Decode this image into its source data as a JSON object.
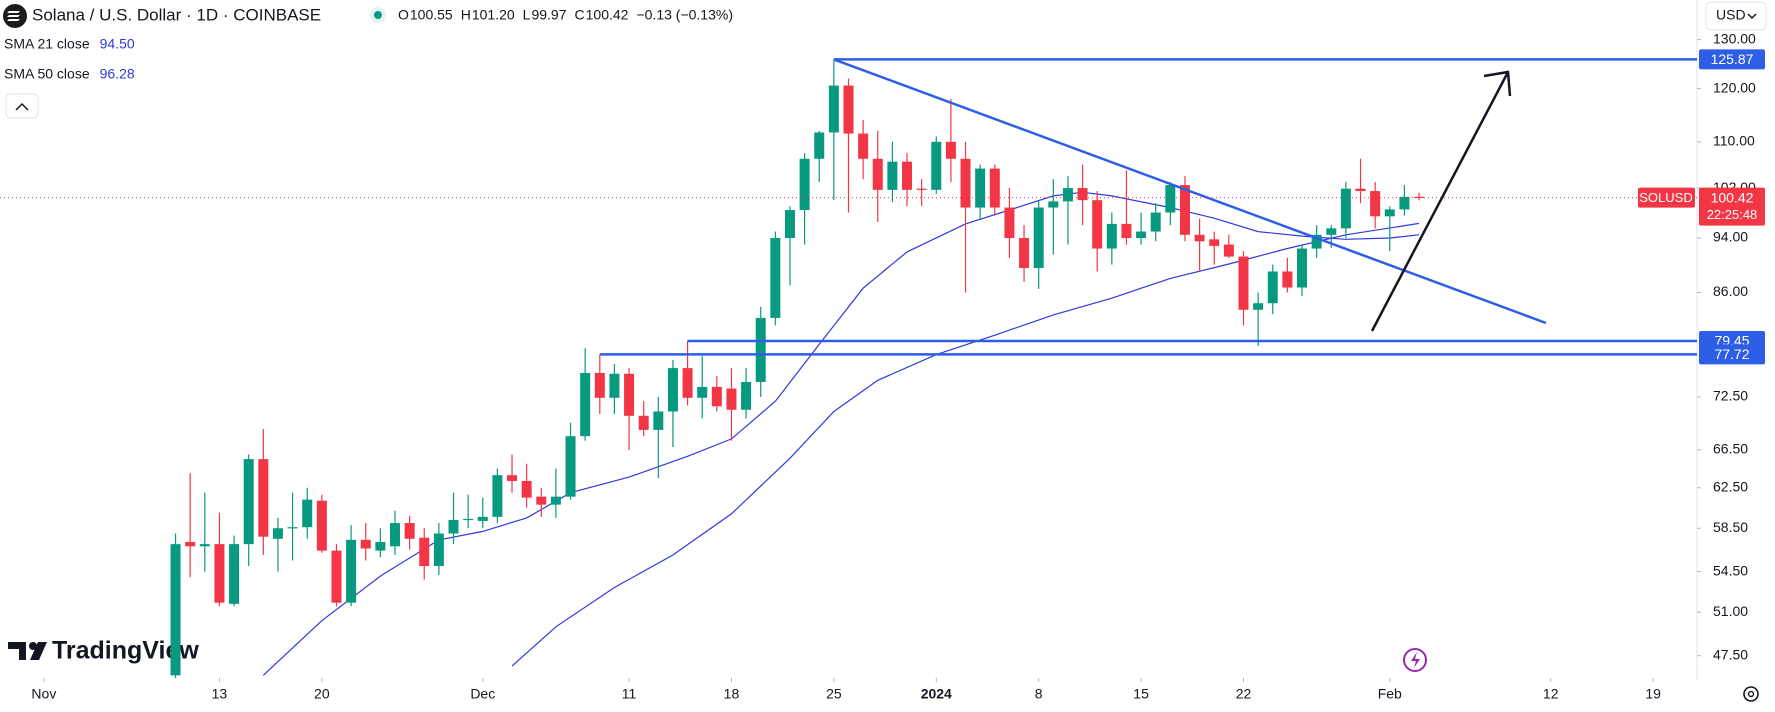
{
  "chart_data": {
    "type": "candlestick",
    "title": "Solana / U.S. Dollar · 1D · COINBASE",
    "ohlc_header": [
      {
        "key": "O",
        "value": "100.55"
      },
      {
        "key": "H",
        "value": "101.20"
      },
      {
        "key": "L",
        "value": "99.97"
      },
      {
        "key": "C",
        "value": "100.42"
      }
    ],
    "change": "−0.13 (−0.13%)",
    "currency": "USD",
    "brand": "TradingView",
    "symbol": "SOLUSD",
    "last_price": 100.42,
    "countdown": "22:25:48",
    "up_color": "#089981",
    "down_color": "#f23645",
    "log_scale": true,
    "ylim": [
      45.8,
      138.7
    ],
    "yticks": [
      {
        "value": 130,
        "label": "130.00"
      },
      {
        "value": 120,
        "label": "120.00"
      },
      {
        "value": 110,
        "label": "110.00"
      },
      {
        "value": 102,
        "label": "102.00"
      },
      {
        "value": 94,
        "label": "94.00"
      },
      {
        "value": 86,
        "label": "86.00"
      },
      {
        "value": 72.5,
        "label": "72.50"
      },
      {
        "value": 66.5,
        "label": "66.50"
      },
      {
        "value": 62.5,
        "label": "62.50"
      },
      {
        "value": 58.5,
        "label": "58.50"
      },
      {
        "value": 54.5,
        "label": "54.50"
      },
      {
        "value": 51,
        "label": "51.00"
      },
      {
        "value": 47.5,
        "label": "47.50"
      }
    ],
    "xlim": [
      "2023-10-29",
      "2024-02-22"
    ],
    "xticks": [
      {
        "value": "2023-11-01",
        "label": "Nov"
      },
      {
        "value": "2023-11-13",
        "label": "13"
      },
      {
        "value": "2023-11-20",
        "label": "20"
      },
      {
        "value": "2023-12-01",
        "label": "Dec"
      },
      {
        "value": "2023-12-11",
        "label": "11"
      },
      {
        "value": "2023-12-18",
        "label": "18"
      },
      {
        "value": "2023-12-25",
        "label": "25"
      },
      {
        "value": "2024-01-01",
        "label": "2024"
      },
      {
        "value": "2024-01-08",
        "label": "8"
      },
      {
        "value": "2024-01-15",
        "label": "15"
      },
      {
        "value": "2024-01-22",
        "label": "22"
      },
      {
        "value": "2024-02-01",
        "label": "Feb"
      },
      {
        "value": "2024-02-12",
        "label": "12"
      },
      {
        "value": "2024-02-19",
        "label": "19"
      }
    ],
    "x": [
      "2023-11-10",
      "2023-11-11",
      "2023-11-12",
      "2023-11-13",
      "2023-11-14",
      "2023-11-15",
      "2023-11-16",
      "2023-11-17",
      "2023-11-18",
      "2023-11-19",
      "2023-11-20",
      "2023-11-21",
      "2023-11-22",
      "2023-11-23",
      "2023-11-24",
      "2023-11-25",
      "2023-11-26",
      "2023-11-27",
      "2023-11-28",
      "2023-11-29",
      "2023-11-30",
      "2023-12-01",
      "2023-12-02",
      "2023-12-03",
      "2023-12-04",
      "2023-12-05",
      "2023-12-06",
      "2023-12-07",
      "2023-12-08",
      "2023-12-09",
      "2023-12-10",
      "2023-12-11",
      "2023-12-12",
      "2023-12-13",
      "2023-12-14",
      "2023-12-15",
      "2023-12-16",
      "2023-12-17",
      "2023-12-18",
      "2023-12-19",
      "2023-12-20",
      "2023-12-21",
      "2023-12-22",
      "2023-12-23",
      "2023-12-24",
      "2023-12-25",
      "2023-12-26",
      "2023-12-27",
      "2023-12-28",
      "2023-12-29",
      "2023-12-30",
      "2023-12-31",
      "2024-01-01",
      "2024-01-02",
      "2024-01-03",
      "2024-01-04",
      "2024-01-05",
      "2024-01-06",
      "2024-01-07",
      "2024-01-08",
      "2024-01-09",
      "2024-01-10",
      "2024-01-11",
      "2024-01-12",
      "2024-01-13",
      "2024-01-14",
      "2024-01-15",
      "2024-01-16",
      "2024-01-17",
      "2024-01-18",
      "2024-01-19",
      "2024-01-20",
      "2024-01-21",
      "2024-01-22",
      "2024-01-23",
      "2024-01-24",
      "2024-01-25",
      "2024-01-26",
      "2024-01-27",
      "2024-01-28",
      "2024-01-29",
      "2024-01-30",
      "2024-01-31",
      "2024-02-01",
      "2024-02-02",
      "2024-02-03"
    ],
    "open": [
      46,
      57.2,
      56.8,
      57,
      51.7,
      57,
      65.5,
      57.5,
      58.5,
      58.6,
      61.2,
      56.4,
      51.8,
      57.4,
      56.4,
      56.8,
      59,
      57.6,
      55,
      58,
      59.3,
      59.2,
      59.6,
      63.8,
      63.2,
      61.6,
      60.8,
      61.6,
      68,
      75.4,
      72.4,
      75.3,
      70.3,
      68.7,
      70.8,
      76,
      72.4,
      73.7,
      73.5,
      71,
      74.3,
      82.5,
      94,
      98.4,
      107,
      111.7,
      120.6,
      111.5,
      107,
      101.7,
      106.5,
      101.9,
      101.7,
      110,
      107,
      98.8,
      105.3,
      98.8,
      94,
      89.5,
      98.8,
      99.8,
      102,
      100,
      92.4,
      96.2,
      94,
      95,
      98,
      102.5,
      94.5,
      93.8,
      93,
      91.2,
      83.6,
      84.5,
      89,
      86.7,
      92.4,
      94.5,
      95.5,
      101.9,
      101.5,
      97.4,
      98.5,
      100.55
    ],
    "high": [
      58,
      64,
      62,
      60,
      57.8,
      66,
      68.8,
      59.5,
      62,
      62.5,
      61.8,
      57,
      58.8,
      59,
      58.5,
      60.2,
      59.7,
      58.5,
      59,
      62,
      61.8,
      61.5,
      64.5,
      66,
      65,
      62.5,
      64.5,
      69.5,
      78.5,
      77.72,
      76.5,
      76,
      72,
      72.5,
      77,
      79.45,
      77.5,
      75,
      76,
      76,
      84,
      95,
      99,
      108,
      112,
      125.87,
      122,
      114,
      112,
      110,
      108,
      103.5,
      111,
      118,
      110,
      106,
      106,
      102,
      96,
      100,
      103.5,
      104,
      106,
      101.5,
      98,
      105,
      98,
      99.5,
      103,
      104,
      97,
      95,
      94.5,
      92,
      86,
      90,
      91,
      93,
      96,
      96,
      103,
      107,
      103,
      99,
      102.5,
      101.2
    ],
    "low": [
      45,
      54,
      54.5,
      51.5,
      51.5,
      55,
      56,
      54.5,
      55.5,
      57.5,
      56.2,
      51.5,
      51.5,
      55.5,
      55.8,
      56,
      56.5,
      53.8,
      54.2,
      57,
      58.5,
      58.5,
      59,
      62,
      60.5,
      59.6,
      59.5,
      61.3,
      67.5,
      70.5,
      70.5,
      66.5,
      68,
      63.5,
      66.8,
      71.5,
      70,
      70.8,
      67.5,
      70,
      72.5,
      81.5,
      87,
      93,
      103,
      100,
      98,
      103.5,
      96.5,
      99.7,
      99,
      99,
      101,
      103,
      86,
      97,
      97.5,
      91,
      87.5,
      86.5,
      91.5,
      93,
      96,
      89,
      90,
      93,
      93,
      93.5,
      96,
      93.5,
      89,
      90,
      91,
      81.5,
      78.8,
      83,
      86,
      85.5,
      91,
      92.5,
      94,
      99.5,
      95.5,
      92,
      97.5,
      99.97
    ],
    "close": [
      57,
      56.8,
      57,
      51.8,
      57,
      65.5,
      57.7,
      58.5,
      58.6,
      61.3,
      56.4,
      51.8,
      57.4,
      56.6,
      57.2,
      59,
      57.5,
      55,
      58,
      59.3,
      59.4,
      59.6,
      63.8,
      63.2,
      61.5,
      60.8,
      61.6,
      68,
      75.4,
      72.4,
      75.3,
      70.3,
      68.7,
      70.8,
      76,
      72.4,
      73.7,
      71.4,
      71,
      74.3,
      82.5,
      94,
      98.4,
      107,
      111.7,
      120.6,
      111.5,
      107,
      101.7,
      106.5,
      101.7,
      101.7,
      110,
      107,
      98.8,
      105.3,
      98.8,
      94,
      89.5,
      98.8,
      99.8,
      102,
      100,
      92.4,
      96.2,
      94,
      95,
      98,
      102.5,
      94.5,
      93.5,
      92.8,
      91.2,
      83.6,
      84.5,
      89,
      86.7,
      92.4,
      94.5,
      95.5,
      101.9,
      101.5,
      97.4,
      98.5,
      100.55,
      100.42
    ],
    "series": [
      {
        "name": "SMA 21 close",
        "last_label": "94.50",
        "color": "#2e3bdb",
        "x": [
          "2023-11-16",
          "2023-11-20",
          "2023-11-24",
          "2023-11-28",
          "2023-12-01",
          "2023-12-04",
          "2023-12-07",
          "2023-12-11",
          "2023-12-15",
          "2023-12-18",
          "2023-12-21",
          "2023-12-24",
          "2023-12-27",
          "2023-12-30",
          "2024-01-03",
          "2024-01-06",
          "2024-01-09",
          "2024-01-11",
          "2024-01-13",
          "2024-01-17",
          "2024-01-20",
          "2024-01-23",
          "2024-01-26",
          "2024-01-29",
          "2024-02-01",
          "2024-02-03"
        ],
        "values": [
          46,
          50.3,
          54.1,
          57.4,
          58.2,
          59.5,
          62,
          63.6,
          65.8,
          67.7,
          72,
          79,
          86.6,
          91.9,
          96.2,
          98.4,
          100.7,
          101.3,
          100.7,
          98.8,
          97.1,
          95,
          94.3,
          93.8,
          94,
          94.5
        ]
      },
      {
        "name": "SMA 50 close",
        "last_label": "96.28",
        "color": "#2e3bdb",
        "x": [
          "2023-12-03",
          "2023-12-06",
          "2023-12-10",
          "2023-12-14",
          "2023-12-18",
          "2023-12-22",
          "2023-12-25",
          "2023-12-28",
          "2024-01-01",
          "2024-01-05",
          "2024-01-09",
          "2024-01-13",
          "2024-01-17",
          "2024-01-21",
          "2024-01-25",
          "2024-01-29",
          "2024-02-03"
        ],
        "values": [
          46.7,
          49.8,
          53.1,
          56,
          59.9,
          65.6,
          70.8,
          74.5,
          77.7,
          80.2,
          82.9,
          85.2,
          88,
          90.1,
          92.4,
          94.5,
          96.28
        ]
      }
    ],
    "levels": [
      {
        "value": 125.87,
        "from": "2023-12-25"
      },
      {
        "value": 79.45,
        "from": "2023-12-15"
      },
      {
        "value": 77.72,
        "from": "2023-12-09"
      }
    ],
    "level_color": "#2f5ee6"
  }
}
